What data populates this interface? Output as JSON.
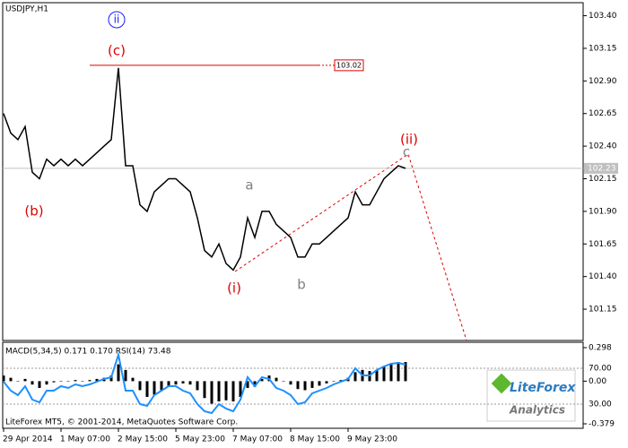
{
  "chart_data": {
    "type": "line",
    "title": "USDJPY,H1",
    "color": "#000000",
    "categories": [
      "29 Apr 2014",
      null,
      null,
      null,
      null,
      null,
      null,
      null,
      "1 May 07:00",
      null,
      null,
      null,
      null,
      null,
      null,
      null,
      "2 May 15:00",
      null,
      null,
      null,
      null,
      null,
      null,
      null,
      "5 May 23:00",
      null,
      null,
      null,
      null,
      null,
      null,
      null,
      "7 May 07:00",
      null,
      null,
      null,
      null,
      null,
      null,
      null,
      "8 May 15:00",
      null,
      null,
      null,
      null,
      null,
      null,
      null,
      "9 May 23:00",
      null,
      null,
      null,
      null,
      null,
      null,
      null,
      null
    ],
    "values": [
      102.65,
      102.5,
      102.45,
      102.55,
      102.2,
      102.15,
      102.3,
      102.25,
      102.3,
      102.25,
      102.3,
      102.25,
      102.3,
      102.35,
      102.4,
      102.45,
      103.0,
      102.25,
      102.25,
      101.95,
      101.9,
      102.05,
      102.1,
      102.15,
      102.15,
      102.1,
      102.05,
      101.85,
      101.6,
      101.55,
      101.65,
      101.5,
      101.45,
      101.55,
      101.85,
      101.7,
      101.9,
      101.9,
      101.8,
      101.75,
      101.7,
      101.55,
      101.55,
      101.65,
      101.65,
      101.7,
      101.75,
      101.8,
      101.85,
      102.05,
      101.95,
      101.95,
      102.05,
      102.15,
      102.2,
      102.25,
      102.23
    ],
    "ylim": [
      100.91,
      103.5
    ],
    "yticks": [
      {
        "value": 103.4,
        "label": "103.40"
      },
      103.15,
      {
        "value": 102.9,
        "label": "102.90"
      },
      102.65,
      {
        "value": 102.4,
        "label": "102.40"
      },
      102.15,
      {
        "value": 101.9,
        "label": "101.90"
      },
      101.65,
      {
        "value": 101.4,
        "label": "101.40"
      },
      101.15
    ],
    "level": 103.02,
    "level_color": "#e00000",
    "last": 102.23,
    "annotations": [
      {
        "text": "ii",
        "color": "#1a1aff"
      },
      {
        "text": "(c)",
        "color": "#e00000"
      },
      {
        "text": "(b)",
        "color": "#e00000"
      },
      {
        "text": "a",
        "color": "#808080"
      },
      {
        "text": "(i)",
        "color": "#e00000"
      },
      {
        "text": "b",
        "color": "#808080"
      },
      {
        "text": "(ii)",
        "color": "#e00000"
      },
      {
        "text": "c",
        "color": "#808080"
      }
    ],
    "indicator": {
      "type": "bar",
      "title": "MACD(5,34,5) 0.171 0.170 RSI(14) 73.48",
      "color": "#000000",
      "values": [
        0.05,
        0.03,
        0.0,
        0.02,
        -0.03,
        -0.06,
        -0.03,
        -0.01,
        0.0,
        0.0,
        0.01,
        0.0,
        0.01,
        0.02,
        0.03,
        0.05,
        0.15,
        0.1,
        0.03,
        -0.08,
        -0.14,
        -0.12,
        -0.08,
        -0.05,
        -0.03,
        -0.02,
        -0.03,
        -0.08,
        -0.15,
        -0.2,
        -0.18,
        -0.17,
        -0.18,
        -0.14,
        -0.06,
        -0.05,
        0.02,
        0.05,
        0.03,
        0.0,
        -0.03,
        -0.07,
        -0.08,
        -0.06,
        -0.04,
        -0.02,
        0.0,
        0.01,
        0.03,
        0.08,
        0.1,
        0.09,
        0.1,
        0.13,
        0.16,
        0.17,
        0.17
      ],
      "ylim": [
        -0.379,
        0.298
      ],
      "yticks": [
        0.298,
        {
          "value": 0,
          "label": "0.00"
        },
        -0.379
      ],
      "rsi": {
        "color": "#1e90ff",
        "ylim": [
          0,
          100
        ],
        "yticks": [
          {
            "value": 70,
            "label": "70.00"
          },
          {
            "value": 30,
            "label": "30.00"
          }
        ],
        "values": [
          55,
          45,
          40,
          50,
          35,
          32,
          45,
          45,
          50,
          48,
          52,
          50,
          52,
          55,
          58,
          60,
          85,
          45,
          45,
          30,
          28,
          40,
          45,
          50,
          50,
          45,
          42,
          30,
          22,
          20,
          30,
          25,
          22,
          35,
          60,
          50,
          60,
          58,
          48,
          45,
          40,
          30,
          32,
          42,
          45,
          48,
          52,
          55,
          58,
          70,
          62,
          62,
          68,
          72,
          75,
          76,
          74
        ]
      }
    },
    "footer": "LiteForex MT5, © 2001-2014, MetaQuotes Software Corp."
  },
  "logo": {
    "brand": "LiteForex",
    "subtitle": "Analytics"
  }
}
